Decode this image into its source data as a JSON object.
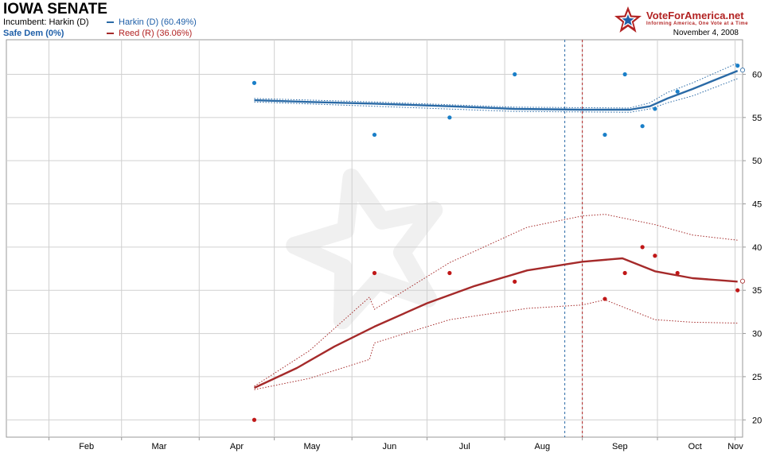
{
  "header": {
    "title": "IOWA SENATE",
    "incumbent": "Incumbent: Harkin (D)",
    "rating": "Safe Dem (0%)",
    "legend": [
      {
        "label": "Harkin (D) (60.49%)",
        "color": "#2a6aa6"
      },
      {
        "label": "Reed (R) (36.06%)",
        "color": "#a52a2a"
      }
    ],
    "date": "November 4, 2008",
    "logo_text": "VoteForAmerica.net",
    "logo_tagline": "Informing America, One Vote at a Time",
    "logo_icon": "star-icon"
  },
  "chart_data": {
    "type": "line",
    "x_ticks": [
      "Feb",
      "Mar",
      "Apr",
      "May",
      "Jun",
      "Jul",
      "Aug",
      "Sep",
      "Oct",
      "Nov"
    ],
    "y_ticks": [
      20,
      25,
      30,
      35,
      40,
      45,
      50,
      55,
      60
    ],
    "ylim": [
      18,
      64
    ],
    "xlim": [
      "2008-01-15",
      "2008-11-04"
    ],
    "grid": true,
    "y_axis_side": "right",
    "event_lines": [
      {
        "date": "2008-08-25",
        "color": "#2a6aa6"
      },
      {
        "date": "2008-09-01",
        "color": "#b22222"
      }
    ],
    "series": [
      {
        "name": "Harkin (D)",
        "color": "#2a6aa6",
        "final_value": 60.49,
        "trend": [
          {
            "x": "2008-04-23",
            "y": 57.0
          },
          {
            "x": "2008-05-15",
            "y": 56.8
          },
          {
            "x": "2008-06-10",
            "y": 56.6
          },
          {
            "x": "2008-07-10",
            "y": 56.3
          },
          {
            "x": "2008-08-05",
            "y": 56.0
          },
          {
            "x": "2008-09-01",
            "y": 55.9
          },
          {
            "x": "2008-09-20",
            "y": 55.9
          },
          {
            "x": "2008-09-28",
            "y": 56.3
          },
          {
            "x": "2008-10-05",
            "y": 57.2
          },
          {
            "x": "2008-10-15",
            "y": 58.3
          },
          {
            "x": "2008-11-02",
            "y": 60.4
          }
        ],
        "upper": [
          {
            "x": "2008-04-23",
            "y": 57.2
          },
          {
            "x": "2008-06-10",
            "y": 56.8
          },
          {
            "x": "2008-08-05",
            "y": 56.2
          },
          {
            "x": "2008-09-20",
            "y": 56.1
          },
          {
            "x": "2008-09-28",
            "y": 56.7
          },
          {
            "x": "2008-10-05",
            "y": 57.9
          },
          {
            "x": "2008-10-15",
            "y": 59.0
          },
          {
            "x": "2008-11-02",
            "y": 61.3
          }
        ],
        "lower": [
          {
            "x": "2008-04-23",
            "y": 56.8
          },
          {
            "x": "2008-06-10",
            "y": 56.3
          },
          {
            "x": "2008-08-05",
            "y": 55.7
          },
          {
            "x": "2008-09-20",
            "y": 55.6
          },
          {
            "x": "2008-09-28",
            "y": 56.0
          },
          {
            "x": "2008-10-05",
            "y": 56.7
          },
          {
            "x": "2008-10-15",
            "y": 57.5
          },
          {
            "x": "2008-11-02",
            "y": 59.5
          }
        ],
        "polls": [
          {
            "x": "2008-04-23",
            "y": 59
          },
          {
            "x": "2008-06-10",
            "y": 53
          },
          {
            "x": "2008-07-10",
            "y": 55
          },
          {
            "x": "2008-08-05",
            "y": 60
          },
          {
            "x": "2008-09-10",
            "y": 53
          },
          {
            "x": "2008-09-18",
            "y": 60
          },
          {
            "x": "2008-09-25",
            "y": 54
          },
          {
            "x": "2008-09-30",
            "y": 56
          },
          {
            "x": "2008-10-09",
            "y": 58
          },
          {
            "x": "2008-11-02",
            "y": 61
          }
        ]
      },
      {
        "name": "Reed (R)",
        "color": "#a52a2a",
        "final_value": 36.06,
        "trend": [
          {
            "x": "2008-04-23",
            "y": 23.7
          },
          {
            "x": "2008-05-10",
            "y": 26.0
          },
          {
            "x": "2008-05-25",
            "y": 28.5
          },
          {
            "x": "2008-06-10",
            "y": 30.8
          },
          {
            "x": "2008-07-01",
            "y": 33.5
          },
          {
            "x": "2008-07-20",
            "y": 35.5
          },
          {
            "x": "2008-08-10",
            "y": 37.3
          },
          {
            "x": "2008-09-01",
            "y": 38.3
          },
          {
            "x": "2008-09-17",
            "y": 38.7
          },
          {
            "x": "2008-09-30",
            "y": 37.2
          },
          {
            "x": "2008-10-15",
            "y": 36.4
          },
          {
            "x": "2008-11-02",
            "y": 36.0
          }
        ],
        "upper": [
          {
            "x": "2008-04-23",
            "y": 23.9
          },
          {
            "x": "2008-05-15",
            "y": 28.0
          },
          {
            "x": "2008-06-08",
            "y": 34.2
          },
          {
            "x": "2008-06-10",
            "y": 32.8
          },
          {
            "x": "2008-07-10",
            "y": 38.2
          },
          {
            "x": "2008-08-10",
            "y": 42.3
          },
          {
            "x": "2008-09-01",
            "y": 43.6
          },
          {
            "x": "2008-09-10",
            "y": 43.8
          },
          {
            "x": "2008-09-30",
            "y": 42.6
          },
          {
            "x": "2008-10-15",
            "y": 41.4
          },
          {
            "x": "2008-11-02",
            "y": 40.8
          }
        ],
        "lower": [
          {
            "x": "2008-04-23",
            "y": 23.5
          },
          {
            "x": "2008-05-15",
            "y": 24.8
          },
          {
            "x": "2008-06-08",
            "y": 27.0
          },
          {
            "x": "2008-06-10",
            "y": 28.9
          },
          {
            "x": "2008-07-10",
            "y": 31.6
          },
          {
            "x": "2008-08-10",
            "y": 32.9
          },
          {
            "x": "2008-09-01",
            "y": 33.3
          },
          {
            "x": "2008-09-10",
            "y": 33.9
          },
          {
            "x": "2008-09-30",
            "y": 31.6
          },
          {
            "x": "2008-10-15",
            "y": 31.3
          },
          {
            "x": "2008-11-02",
            "y": 31.2
          }
        ],
        "polls": [
          {
            "x": "2008-04-23",
            "y": 20
          },
          {
            "x": "2008-06-10",
            "y": 37
          },
          {
            "x": "2008-07-10",
            "y": 37
          },
          {
            "x": "2008-08-05",
            "y": 36
          },
          {
            "x": "2008-09-10",
            "y": 34
          },
          {
            "x": "2008-09-18",
            "y": 37
          },
          {
            "x": "2008-09-25",
            "y": 40
          },
          {
            "x": "2008-09-30",
            "y": 39
          },
          {
            "x": "2008-10-09",
            "y": 37
          },
          {
            "x": "2008-11-02",
            "y": 35
          }
        ]
      }
    ]
  }
}
